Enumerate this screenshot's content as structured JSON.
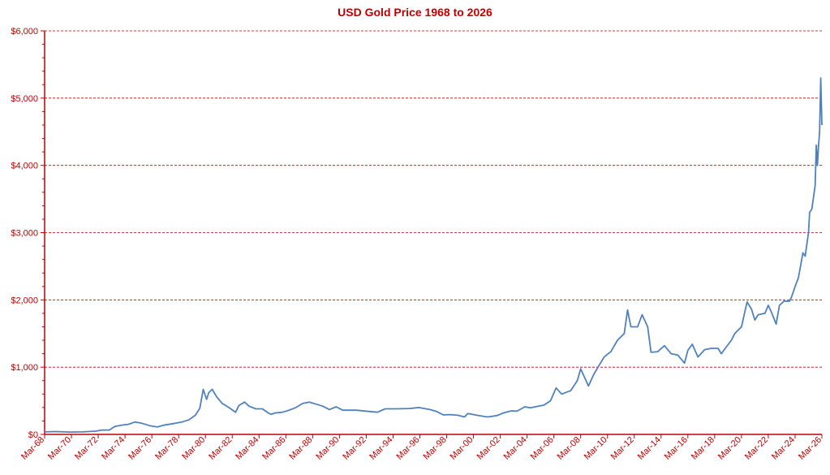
{
  "chart_data": {
    "type": "line",
    "title": "USD Gold Price 1968 to 2026",
    "xlabel": "",
    "ylabel": "",
    "ylim": [
      0,
      6000
    ],
    "xlim": [
      "1968-03",
      "2026-03"
    ],
    "y_ticks": [
      "$0",
      "$1,000",
      "$2,000",
      "$3,000",
      "$4,000",
      "$5,000",
      "$6,000"
    ],
    "y_tick_values": [
      0,
      1000,
      2000,
      3000,
      4000,
      5000,
      6000
    ],
    "x_ticks": [
      "Mar-68",
      "Mar-70",
      "Mar-72",
      "Mar-74",
      "Mar-76",
      "Mar-78",
      "Mar-80",
      "Mar-82",
      "Mar-84",
      "Mar-86",
      "Mar-88",
      "Mar-90",
      "Mar-92",
      "Mar-94",
      "Mar-96",
      "Mar-98",
      "Mar-00",
      "Mar-02",
      "Mar-04",
      "Mar-06",
      "Mar-08",
      "Mar-10",
      "Mar-12",
      "Mar-14",
      "Mar-16",
      "Mar-18",
      "Mar-20",
      "Mar-22",
      "Mar-24",
      "Mar-26"
    ],
    "x_tick_values": [
      "1968-03",
      "1970-03",
      "1972-03",
      "1974-03",
      "1976-03",
      "1978-03",
      "1980-03",
      "1982-03",
      "1984-03",
      "1986-03",
      "1988-03",
      "1990-03",
      "1992-03",
      "1994-03",
      "1996-03",
      "1998-03",
      "2000-03",
      "2002-03",
      "2004-03",
      "2006-03",
      "2008-03",
      "2010-03",
      "2012-03",
      "2014-03",
      "2016-03",
      "2018-03",
      "2020-03",
      "2022-03",
      "2024-03",
      "2026-03"
    ],
    "grid": "horizontal dashed",
    "line_color": "#4f81bd",
    "axis_color": "#c00000",
    "grid_color": "#c00000",
    "series": [
      {
        "x": [
          "1968-03",
          "1969-01",
          "1970-01",
          "1971-01",
          "1972-01",
          "1972-06",
          "1973-01",
          "1973-06",
          "1974-01",
          "1974-06",
          "1974-12",
          "1975-06",
          "1976-01",
          "1976-08",
          "1977-01",
          "1977-12",
          "1978-06",
          "1978-12",
          "1979-06",
          "1979-10",
          "1980-01",
          "1980-04",
          "1980-06",
          "1980-09",
          "1981-01",
          "1981-06",
          "1981-12",
          "1982-06",
          "1982-09",
          "1983-02",
          "1983-06",
          "1983-12",
          "1984-06",
          "1984-12",
          "1985-02",
          "1985-06",
          "1985-12",
          "1986-06",
          "1986-12",
          "1987-06",
          "1987-12",
          "1988-06",
          "1988-12",
          "1989-06",
          "1989-12",
          "1990-06",
          "1991-01",
          "1991-06",
          "1992-06",
          "1993-01",
          "1993-08",
          "1994-06",
          "1995-06",
          "1996-02",
          "1996-12",
          "1997-06",
          "1997-12",
          "1998-06",
          "1999-01",
          "1999-07",
          "1999-10",
          "2000-06",
          "2001-01",
          "2001-04",
          "2001-12",
          "2002-06",
          "2003-01",
          "2003-06",
          "2004-01",
          "2004-06",
          "2005-01",
          "2005-06",
          "2005-12",
          "2006-05",
          "2006-10",
          "2007-06",
          "2007-12",
          "2008-03",
          "2008-10",
          "2009-03",
          "2009-12",
          "2010-06",
          "2010-12",
          "2011-06",
          "2011-09",
          "2011-12",
          "2012-06",
          "2012-10",
          "2013-03",
          "2013-06",
          "2013-12",
          "2014-06",
          "2014-12",
          "2015-06",
          "2015-12",
          "2016-03",
          "2016-07",
          "2016-12",
          "2017-06",
          "2017-12",
          "2018-06",
          "2018-09",
          "2019-01",
          "2019-06",
          "2019-09",
          "2020-03",
          "2020-08",
          "2020-12",
          "2021-03",
          "2021-06",
          "2021-12",
          "2022-03",
          "2022-06",
          "2022-10",
          "2023-01",
          "2023-05",
          "2023-10",
          "2023-12",
          "2024-03",
          "2024-06",
          "2024-10",
          "2024-12",
          "2025-03",
          "2025-04",
          "2025-06",
          "2025-09",
          "2025-10",
          "2025-11",
          "2025-12",
          "2026-01",
          "2026-02",
          "2026-03"
        ],
        "y": [
          38,
          42,
          35,
          38,
          48,
          65,
          65,
          120,
          140,
          150,
          185,
          165,
          130,
          110,
          135,
          165,
          185,
          215,
          285,
          390,
          670,
          520,
          620,
          670,
          560,
          460,
          400,
          330,
          430,
          480,
          420,
          380,
          380,
          310,
          300,
          320,
          330,
          360,
          400,
          460,
          480,
          450,
          420,
          370,
          410,
          360,
          360,
          360,
          340,
          330,
          380,
          380,
          385,
          400,
          370,
          340,
          290,
          295,
          285,
          260,
          310,
          285,
          265,
          260,
          280,
          320,
          350,
          345,
          410,
          395,
          420,
          435,
          500,
          690,
          600,
          650,
          800,
          975,
          720,
          900,
          1150,
          1230,
          1400,
          1500,
          1850,
          1600,
          1600,
          1780,
          1600,
          1220,
          1230,
          1320,
          1200,
          1180,
          1060,
          1250,
          1340,
          1150,
          1260,
          1280,
          1280,
          1200,
          1290,
          1400,
          1500,
          1600,
          1970,
          1860,
          1700,
          1780,
          1800,
          1920,
          1810,
          1640,
          1920,
          1980,
          1980,
          2050,
          2200,
          2330,
          2700,
          2650,
          3000,
          3300,
          3350,
          3700,
          4300,
          4000,
          4300,
          4500,
          5300,
          4600
        ]
      }
    ]
  }
}
